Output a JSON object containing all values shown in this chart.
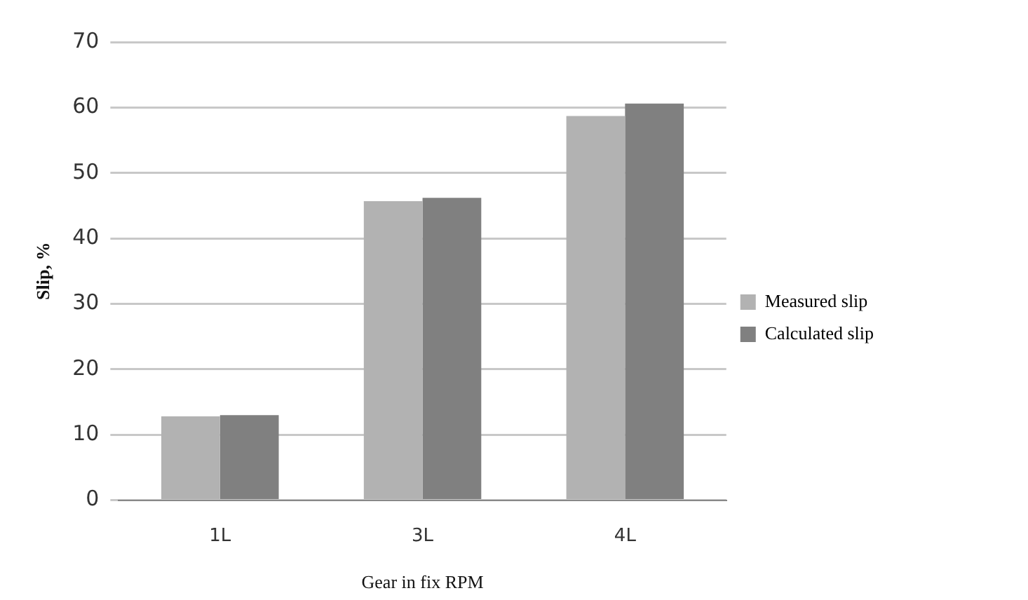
{
  "chart_data": {
    "type": "bar",
    "xlabel": "Gear in fix RPM",
    "ylabel": "Slip, %",
    "categories": [
      "1L",
      "3L",
      "4L"
    ],
    "series": [
      {
        "name": "Measured slip",
        "color": "#b2b2b2",
        "values": [
          12.8,
          45.7,
          58.7
        ]
      },
      {
        "name": "Calculated slip",
        "color": "#808080",
        "values": [
          13.0,
          46.2,
          60.6
        ]
      }
    ],
    "ylim": [
      0,
      70
    ],
    "yticks": [
      0,
      10,
      20,
      30,
      40,
      50,
      60,
      70
    ],
    "grid": "y",
    "legend": "right"
  }
}
